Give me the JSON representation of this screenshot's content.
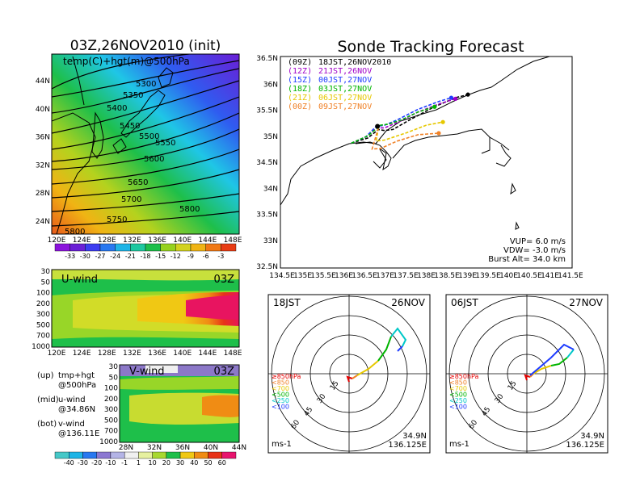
{
  "left_title": "03Z,26NOV2010 (init)",
  "right_title": "Sonde Tracking Forecast",
  "top_panel": {
    "label": "temp(C)+hgt(m)@500hPa",
    "y_ticks": [
      "44N",
      "40N",
      "36N",
      "32N",
      "28N",
      "24N"
    ],
    "x_ticks": [
      "120E",
      "124E",
      "128E",
      "132E",
      "136E",
      "140E",
      "144E",
      "148E"
    ],
    "contour_labels": [
      "5300",
      "5350",
      "5400",
      "5450",
      "5500",
      "5550",
      "5600",
      "5650",
      "5700",
      "5750",
      "5800",
      "5800"
    ]
  },
  "temp_colorbar": [
    "-33",
    "-30",
    "-27",
    "-24",
    "-21",
    "-18",
    "-15",
    "-12",
    "-9",
    "-6",
    "-3"
  ],
  "u_panel": {
    "title": "U-wind",
    "time": "03Z",
    "y_ticks": [
      "30",
      "50",
      "100",
      "200",
      "300",
      "500",
      "700",
      "1000"
    ],
    "x_ticks": [
      "120E",
      "124E",
      "128E",
      "132E",
      "136E",
      "140E",
      "144E",
      "148E"
    ]
  },
  "v_panel": {
    "title": "V-wind",
    "time": "03Z",
    "y_ticks": [
      "30",
      "50",
      "100",
      "200",
      "300",
      "500",
      "700",
      "1000"
    ],
    "x_ticks": [
      "28N",
      "32N",
      "36N",
      "40N",
      "44N"
    ]
  },
  "legend_text": [
    {
      "label": "(up)",
      "text": "tmp+hgt"
    },
    {
      "label": "",
      "text": "@500hPa"
    },
    {
      "label": "(mid)",
      "text": "u-wind"
    },
    {
      "label": "",
      "text": "@34.86N"
    },
    {
      "label": "(bot)",
      "text": "v-wind"
    },
    {
      "label": "",
      "text": "@136.11E"
    }
  ],
  "wind_colorbar": [
    "-40",
    "-30",
    "-20",
    "-10",
    "-1",
    "1",
    "10",
    "20",
    "30",
    "40",
    "50",
    "60"
  ],
  "track_map": {
    "y_ticks": [
      "36.5N",
      "36N",
      "35.5N",
      "35N",
      "34.5N",
      "34N",
      "33.5N",
      "33N",
      "32.5N"
    ],
    "x_ticks": [
      "134.5E",
      "135E",
      "135.5E",
      "136E",
      "136.5E",
      "137E",
      "137.5E",
      "138E",
      "138.5E",
      "139E",
      "139.5E",
      "140E",
      "140.5E",
      "141E",
      "141.5E"
    ],
    "launches": [
      {
        "code": "(09Z)",
        "text": "18JST,26NOV2010",
        "color": "#000000"
      },
      {
        "code": "(12Z)",
        "text": "21JST,26NOV",
        "color": "#a000c8"
      },
      {
        "code": "(15Z)",
        "text": "00JST,27NOV",
        "color": "#1e3cff"
      },
      {
        "code": "(18Z)",
        "text": "03JST,27NOV",
        "color": "#00b400"
      },
      {
        "code": "(21Z)",
        "text": "06JST,27NOV",
        "color": "#e6c800"
      },
      {
        "code": "(00Z)",
        "text": "09JST,27NOV",
        "color": "#f08228"
      }
    ],
    "params": [
      "VUP= 6.0 m/s",
      "VDW= -3.0 m/s",
      "Burst Alt= 34.0 km"
    ]
  },
  "hodo_left": {
    "time": "18JST",
    "date": "26NOV"
  },
  "hodo_right": {
    "time": "06JST",
    "date": "27NOV"
  },
  "hodo_common": {
    "rings": [
      "15",
      "30",
      "45",
      "60"
    ],
    "levels": [
      {
        "text": "≥850hPa",
        "color": "#e60000"
      },
      {
        "text": "<850",
        "color": "#f08228"
      },
      {
        "text": "<700",
        "color": "#e6c800"
      },
      {
        "text": "<500",
        "color": "#00b400"
      },
      {
        "text": "<250",
        "color": "#00c8c8"
      },
      {
        "text": "<100",
        "color": "#1e3cff"
      }
    ],
    "unit": "ms-1",
    "lat": "34.9N",
    "lon": "136.125E"
  },
  "chart_data": [
    {
      "type": "heatmap",
      "title": "03Z,26NOV2010 (init)",
      "subtitle": "temp(C)+hgt(m)@500hPa",
      "xlim": [
        120,
        150
      ],
      "ylim": [
        22,
        48
      ],
      "contours_hgt": [
        5300,
        5350,
        5400,
        5450,
        5500,
        5550,
        5600,
        5650,
        5700,
        5750,
        5800
      ],
      "colorbar": [
        -33,
        -30,
        -27,
        -24,
        -21,
        -18,
        -15,
        -12,
        -9,
        -6,
        -3
      ]
    },
    {
      "type": "line",
      "title": "Sonde Tracking Forecast",
      "xlim": [
        134.5,
        141.5
      ],
      "ylim": [
        32.5,
        36.5
      ],
      "launch": [
        136.83,
        35.18
      ],
      "series": [
        {
          "name": "(09Z) 18JST,26NOV2010",
          "x": [
            136.2,
            136.6,
            136.85,
            137.0,
            137.2,
            137.6,
            138.2,
            138.7,
            139.0
          ],
          "y": [
            34.86,
            34.96,
            35.12,
            35.1,
            35.12,
            35.3,
            35.55,
            35.72,
            35.78
          ]
        },
        {
          "name": "(12Z) 21JST,26NOV",
          "x": [
            136.2,
            136.55,
            136.8,
            137.0,
            137.3,
            137.8,
            138.3,
            138.7
          ],
          "y": [
            34.86,
            34.98,
            35.15,
            35.15,
            35.25,
            35.45,
            35.6,
            35.7
          ]
        },
        {
          "name": "(15Z) 00JST,27NOV",
          "x": [
            136.2,
            136.55,
            136.8,
            137.0,
            137.3,
            137.8,
            138.3,
            138.6
          ],
          "y": [
            34.86,
            34.98,
            35.18,
            35.2,
            35.3,
            35.5,
            35.65,
            35.72
          ]
        },
        {
          "name": "(18Z) 03JST,27NOV",
          "x": [
            136.2,
            136.6,
            136.9,
            137.1,
            137.4,
            137.8,
            138.2
          ],
          "y": [
            34.86,
            35.0,
            35.2,
            35.22,
            35.3,
            35.45,
            35.55
          ]
        },
        {
          "name": "(21Z) 06JST,27NOV",
          "x": [
            136.85,
            136.8,
            137.0,
            137.5,
            138.0,
            138.4
          ],
          "y": [
            35.15,
            34.9,
            34.92,
            35.05,
            35.2,
            35.26
          ]
        },
        {
          "name": "(00Z) 09JST,27NOV",
          "x": [
            136.85,
            136.7,
            136.9,
            137.3,
            137.8,
            138.3
          ],
          "y": [
            35.15,
            34.75,
            34.76,
            34.9,
            35.02,
            35.05
          ]
        }
      ]
    }
  ]
}
